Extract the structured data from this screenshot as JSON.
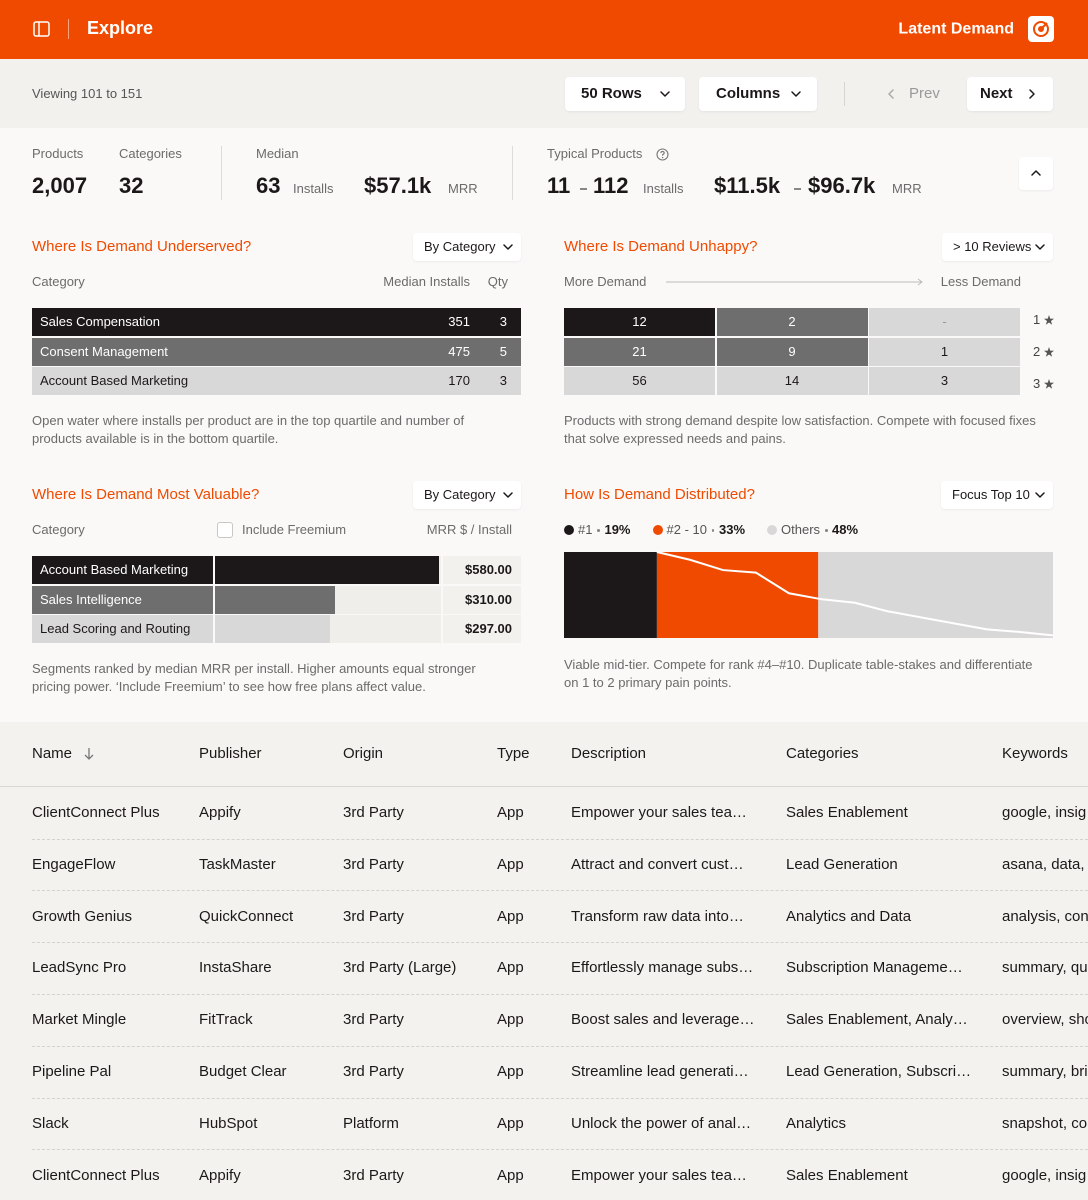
{
  "header": {
    "title": "Explore",
    "brand": "Latent Demand"
  },
  "toolbar": {
    "viewing": "Viewing 101 to 151",
    "rows": "50 Rows",
    "columns": "Columns",
    "prev": "Prev",
    "next": "Next"
  },
  "stats": {
    "products": {
      "label": "Products",
      "value": "2,007"
    },
    "categories": {
      "label": "Categories",
      "value": "32"
    },
    "median": {
      "label": "Median",
      "installs": "63",
      "installs_unit": "Installs",
      "mrr": "$57.1k",
      "mrr_unit": "MRR"
    },
    "typical": {
      "label": "Typical Products",
      "installs_low": "11",
      "installs_high": "112",
      "installs_unit": "Installs",
      "mrr_low": "$11.5k",
      "mrr_high": "$96.7k",
      "mrr_unit": "MRR"
    }
  },
  "panels": {
    "underserved": {
      "title": "Where Is Demand Underserved?",
      "filter": "By Category",
      "columns": [
        "Category",
        "Median Installs",
        "Qty"
      ],
      "rows": [
        {
          "name": "Sales Compensation",
          "installs": 351,
          "qty": 3,
          "color": "#1c1819"
        },
        {
          "name": "Consent Management",
          "installs": 475,
          "qty": 5,
          "color": "#6f6e6e"
        },
        {
          "name": "Account Based Marketing",
          "installs": 170,
          "qty": 3,
          "color": "#d9d8d8"
        }
      ],
      "note": "Open water where installs per product are in the top quartile and number of products available is in the bottom quartile."
    },
    "unhappy": {
      "title": "Where Is Demand Unhappy?",
      "filter": "> 10 Reviews",
      "axis": {
        "start": "More Demand",
        "end": "Less Demand"
      },
      "rows": [
        {
          "stars": "1",
          "cells": [
            12,
            2,
            "-"
          ],
          "colors": [
            "#1c1819",
            "#6f6e6e",
            "#d9d8d8"
          ]
        },
        {
          "stars": "2",
          "cells": [
            21,
            9,
            1
          ],
          "colors": [
            "#6f6e6e",
            "#6f6e6e",
            "#d9d8d8"
          ]
        },
        {
          "stars": "3",
          "cells": [
            56,
            14,
            3
          ],
          "colors": [
            "#d9d8d8",
            "#d9d8d8",
            "#d9d8d8"
          ]
        }
      ],
      "note": "Products with strong demand despite low satisfaction. Compete with focused fixes that solve expressed needs and pains."
    },
    "valuable": {
      "title": "Where Is Demand Most Valuable?",
      "filter": "By Category",
      "columns": [
        "Category",
        "MRR $ / Install"
      ],
      "toggle": "Include Freemium",
      "rows": [
        {
          "name": "Account Based Marketing",
          "value": 580,
          "value_label": "$580.00",
          "color": "#1c1819"
        },
        {
          "name": "Sales Intelligence",
          "value": 310,
          "value_label": "$310.00",
          "color": "#6f6e6e"
        },
        {
          "name": "Lead Scoring and Routing",
          "value": 297,
          "value_label": "$297.00",
          "color": "#d9d8d8"
        }
      ],
      "note": "Segments ranked by median MRR per install. Higher amounts equal stronger pricing power. ‘Include Freemium’ to see how free plans affect value."
    },
    "distributed": {
      "title": "How Is Demand Distributed?",
      "filter": "Focus Top 10",
      "segments": [
        {
          "name": "#1",
          "value": 19,
          "value_label": "19%",
          "color": "#1c1819"
        },
        {
          "name": "#2 - 10",
          "value": 33,
          "value_label": "33%",
          "color": "#f04a00"
        },
        {
          "name": "Others",
          "value": 48,
          "value_label": "48%",
          "color": "#d9d8d8"
        }
      ],
      "curve": [
        100,
        91,
        79,
        76,
        52,
        45,
        41,
        31,
        24,
        17,
        10,
        7,
        3
      ],
      "note": "Viable mid-tier. Compete for rank #4–#10. Duplicate table-stakes and differentiate on 1 to 2 primary pain points."
    }
  },
  "table": {
    "columns": [
      "Name",
      "Publisher",
      "Origin",
      "Type",
      "Description",
      "Categories",
      "Keywords"
    ],
    "rows": [
      [
        "ClientConnect Plus",
        "Appify",
        "3rd Party",
        "App",
        "Empower your sales tea…",
        "Sales Enablement",
        "google, insig"
      ],
      [
        "EngageFlow",
        "TaskMaster",
        "3rd Party",
        "App",
        "Attract and convert cust…",
        "Lead Generation",
        "asana, data,"
      ],
      [
        "Growth Genius",
        "QuickConnect",
        "3rd Party",
        "App",
        "Transform raw data into…",
        "Analytics and Data",
        "analysis, con"
      ],
      [
        "LeadSync Pro",
        "InstaShare",
        "3rd Party (Large)",
        "App",
        "Effortlessly manage subs…",
        "Subscription Manageme…",
        "summary, qu"
      ],
      [
        "Market Mingle",
        "FitTrack",
        "3rd Party",
        "App",
        "Boost sales and leverage…",
        "Sales Enablement, Analy…",
        "overview, sho"
      ],
      [
        "Pipeline Pal",
        "Budget Clear",
        "3rd Party",
        "App",
        "Streamline lead generati…",
        "Lead Generation, Subscri…",
        "summary, bri"
      ],
      [
        "Slack",
        "HubSpot",
        "Platform",
        "App",
        "Unlock the power of anal…",
        "Analytics",
        "snapshot, co"
      ],
      [
        "ClientConnect Plus",
        "Appify",
        "3rd Party",
        "App",
        "Empower your sales tea…",
        "Sales Enablement",
        "google, insig"
      ]
    ]
  }
}
